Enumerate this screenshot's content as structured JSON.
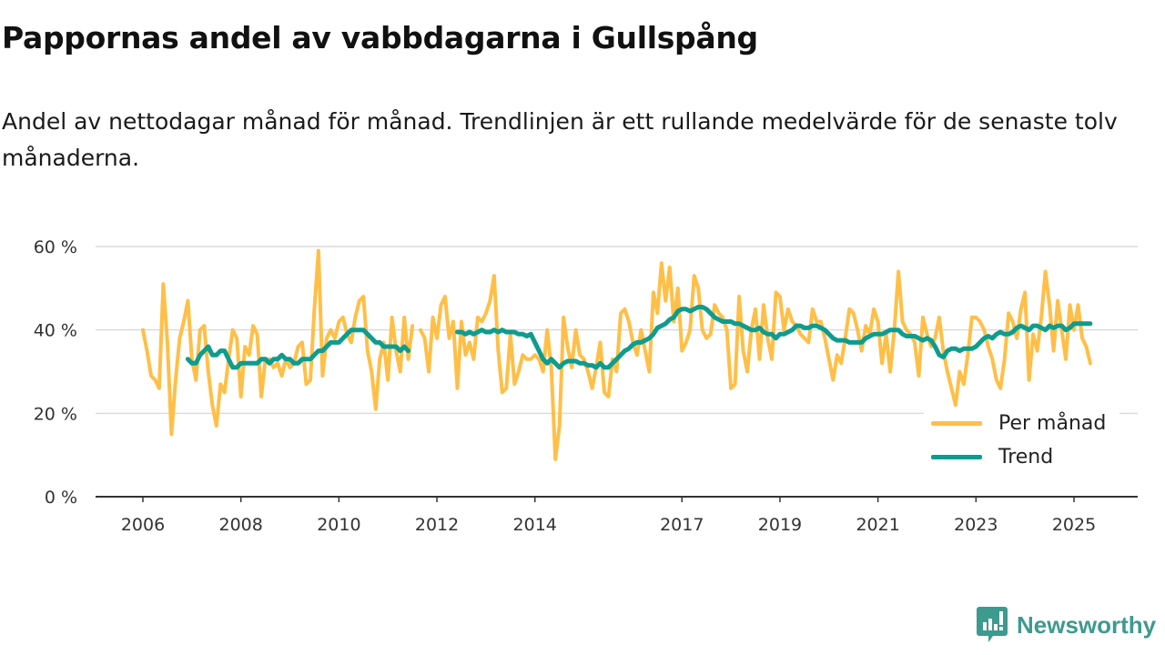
{
  "title": "Pappornas andel av vabbdagarna i Gullspång",
  "subtitle": "Andel av nettodagar månad för månad. Trendlinjen är ett rullande medelvärde för de senaste tolv månaderna.",
  "brand": "Newsworthy",
  "colors": {
    "monthly": "#FFBF47",
    "trend": "#0E9C8E",
    "brand": "#3D9A8E"
  },
  "chart_data": {
    "type": "line",
    "title": "Pappornas andel av vabbdagarna i Gullspång",
    "xlabel": "",
    "ylabel": "",
    "ylim": [
      0,
      60
    ],
    "y_ticks": [
      "0 %",
      "20 %",
      "40 %",
      "60 %"
    ],
    "y_tick_values": [
      0,
      20,
      40,
      60
    ],
    "x_ticks": [
      "2006",
      "2008",
      "2010",
      "2012",
      "2014",
      "2017",
      "2019",
      "2021",
      "2023",
      "2025"
    ],
    "x_start": "2006-01",
    "x_frequency": "monthly",
    "grid": true,
    "legend_position": "bottom-right",
    "series": [
      {
        "name": "Per månad",
        "values": [
          40,
          35,
          29,
          28,
          26,
          51,
          37,
          15,
          28,
          38,
          42,
          47,
          33,
          28,
          40,
          41,
          30,
          22,
          17,
          27,
          25,
          33,
          40,
          38,
          24,
          36,
          34,
          41,
          39,
          24,
          33,
          33,
          31,
          32,
          29,
          33,
          31,
          32,
          36,
          37,
          27,
          28,
          45,
          59,
          29,
          38,
          40,
          38,
          42,
          43,
          39,
          37,
          43,
          47,
          48,
          35,
          30,
          21,
          33,
          37,
          28,
          43,
          35,
          30,
          43,
          33,
          41,
          null,
          40,
          38,
          30,
          43,
          38,
          46,
          48,
          38,
          42,
          26,
          42,
          34,
          37,
          33,
          43,
          42,
          44,
          47,
          53,
          35,
          25,
          26,
          39,
          27,
          30,
          34,
          33,
          33,
          34,
          33,
          30,
          40,
          31,
          9,
          17,
          43,
          36,
          31,
          40,
          34,
          33,
          30,
          26,
          31,
          37,
          25,
          24,
          33,
          30,
          44,
          45,
          42,
          37,
          34,
          40,
          35,
          30,
          49,
          44,
          56,
          47,
          55,
          42,
          50,
          35,
          37,
          40,
          53,
          50,
          40,
          38,
          39,
          46,
          44,
          43,
          40,
          26,
          27,
          48,
          35,
          30,
          40,
          45,
          33,
          46,
          38,
          33,
          49,
          48,
          40,
          45,
          42,
          41,
          39,
          38,
          37,
          45,
          42,
          42,
          38,
          33,
          28,
          34,
          32,
          38,
          45,
          44,
          40,
          35,
          41,
          39,
          45,
          42,
          32,
          39,
          30,
          40,
          54,
          42,
          40,
          39,
          37,
          29,
          43,
          39,
          36,
          38,
          43,
          35,
          30,
          26,
          22,
          30,
          27,
          34,
          43,
          43,
          42,
          40,
          36,
          33,
          28,
          26,
          33,
          44,
          42,
          38,
          45,
          49,
          28,
          39,
          35,
          43,
          54,
          46,
          35,
          47,
          40,
          33,
          46,
          40,
          46,
          38,
          36,
          32
        ]
      },
      {
        "name": "Trend",
        "values": [
          null,
          null,
          null,
          null,
          null,
          null,
          null,
          null,
          null,
          null,
          null,
          33,
          32,
          32,
          34,
          35,
          36,
          34,
          34,
          35,
          35,
          33,
          31,
          31,
          32,
          32,
          32,
          32,
          32,
          33,
          33,
          32,
          33,
          33,
          34,
          33,
          33,
          32,
          32,
          33,
          33,
          33,
          34,
          35,
          35,
          36,
          37,
          37,
          37,
          38,
          39,
          40,
          40,
          40,
          40,
          39,
          38,
          37,
          37,
          36,
          36,
          36,
          36,
          35,
          36,
          35,
          null,
          null,
          null,
          null,
          null,
          null,
          null,
          null,
          null,
          null,
          null,
          39.5,
          39.5,
          39,
          39.5,
          39,
          39.5,
          40,
          39.5,
          39.5,
          40,
          39.5,
          40,
          39.5,
          39.5,
          39.5,
          39,
          39,
          38.5,
          39,
          37,
          35,
          33,
          32,
          33,
          32,
          31,
          32,
          32.5,
          32.5,
          32.5,
          32,
          32,
          31.5,
          31.5,
          31,
          32,
          31,
          31,
          32,
          33,
          34,
          35,
          35.5,
          36.5,
          37,
          37,
          37.5,
          38,
          39,
          40.5,
          41,
          41.5,
          42.5,
          43,
          44.5,
          45,
          45,
          44.5,
          45,
          45.5,
          45.5,
          45,
          44,
          43,
          42.5,
          42,
          42,
          42,
          41.5,
          41.5,
          41,
          40.5,
          40,
          40,
          40.5,
          39.5,
          39,
          39,
          38,
          39,
          39,
          39.5,
          40,
          41,
          41,
          40.5,
          40.5,
          41,
          41,
          40.5,
          40,
          39,
          38,
          37.5,
          37.5,
          37.5,
          37,
          37,
          37,
          37,
          38,
          38.5,
          39,
          39,
          39,
          39.5,
          40,
          40,
          40,
          39,
          38.5,
          38.5,
          38.5,
          38,
          37.5,
          38,
          37.5,
          36,
          34,
          33.5,
          35,
          35.5,
          35.5,
          35,
          35.5,
          35.5,
          35.5,
          36,
          37,
          38,
          38.5,
          38,
          39,
          39.5,
          39,
          39,
          39.5,
          40.5,
          41,
          40.5,
          40,
          41,
          41,
          40.5,
          40,
          41,
          40.5,
          41,
          41,
          40,
          40.5,
          41.5,
          41.5,
          41.5,
          41.5,
          41.5
        ]
      }
    ]
  }
}
